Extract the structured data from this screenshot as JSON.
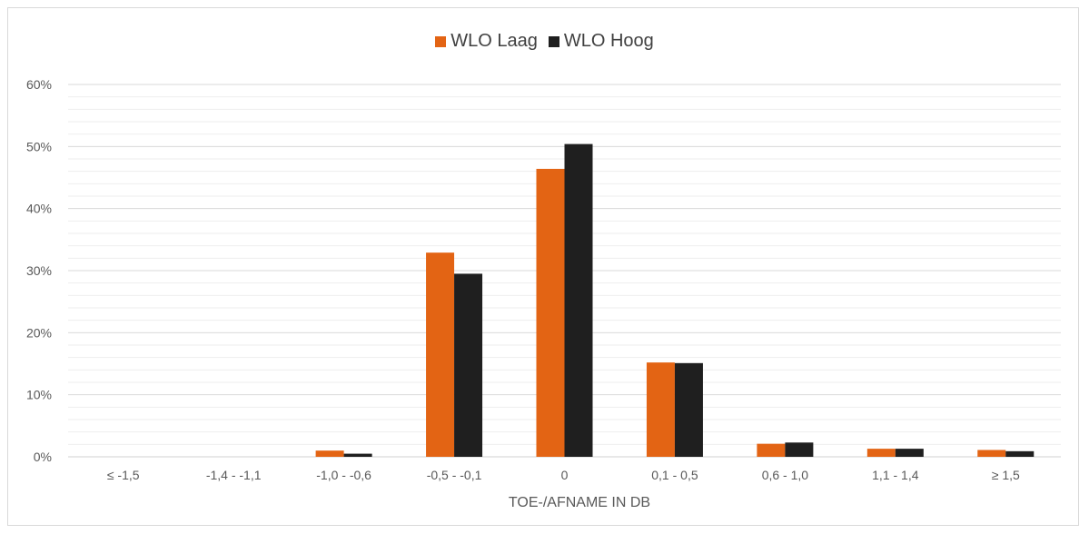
{
  "chart_data": {
    "type": "bar",
    "categories": [
      "≤ -1,5",
      "-1,4 - -1,1",
      "-1,0 - -0,6",
      "-0,5 - -0,1",
      "0",
      "0,1 - 0,5",
      "0,6 - 1,0",
      "1,1 - 1,4",
      "≥ 1,5"
    ],
    "series": [
      {
        "name": "WLO Laag",
        "color": "#e36414",
        "values": [
          0,
          0,
          1.0,
          32.9,
          46.4,
          15.2,
          2.1,
          1.3,
          1.1
        ]
      },
      {
        "name": "WLO Hoog",
        "color": "#1f1f1f",
        "values": [
          0,
          0,
          0.5,
          29.5,
          50.4,
          15.1,
          2.3,
          1.3,
          0.9
        ]
      }
    ],
    "title": "",
    "xlabel": "TOE-/AFNAME IN DB",
    "ylabel": "",
    "ylim": [
      0,
      60
    ],
    "yticks": [
      "0%",
      "10%",
      "20%",
      "30%",
      "40%",
      "50%",
      "60%"
    ],
    "grid": true,
    "legend": "top-center"
  }
}
